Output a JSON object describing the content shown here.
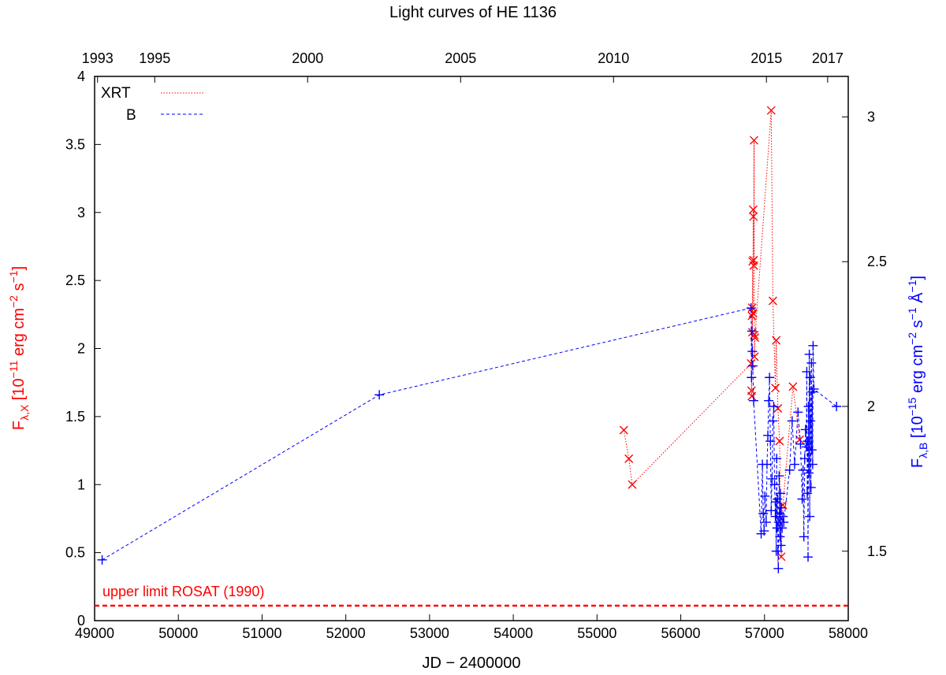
{
  "chart_data": {
    "type": "scatter",
    "title": "Light curves of HE 1136",
    "xlabel": "JD − 2400000",
    "xlim": [
      49000,
      58000
    ],
    "x_ticks": [
      49000,
      50000,
      51000,
      52000,
      53000,
      54000,
      55000,
      56000,
      57000,
      58000
    ],
    "top_axis": {
      "label_positions_jd": [
        49035,
        49718,
        51544,
        53371,
        55197,
        57023,
        57754
      ],
      "labels": [
        "1993",
        "1995",
        "2000",
        "2005",
        "2010",
        "2015",
        "2017"
      ]
    },
    "ylabel_left": "F",
    "ylabel_left_sub": "λ,X",
    "ylabel_left_unit": " [10",
    "ylabel_left_exp1": "−11",
    "ylabel_left_mid": " erg cm",
    "ylabel_left_exp2": "−2",
    "ylabel_left_mid2": " s",
    "ylabel_left_exp3": "−1",
    "ylabel_left_end": "]",
    "ylim_left": [
      0,
      4
    ],
    "y_ticks_left": [
      "0",
      "0.5",
      "1",
      "1.5",
      "2",
      "2.5",
      "3",
      "3.5",
      "4"
    ],
    "ylabel_right": "F",
    "ylabel_right_sub": "λ,B",
    "ylabel_right_unit": " [10",
    "ylabel_right_exp1": "−15",
    "ylabel_right_mid": " erg cm",
    "ylabel_right_exp2": "−2",
    "ylabel_right_mid2": " s",
    "ylabel_right_exp3": "−1",
    "ylabel_right_mid3": " Å",
    "ylabel_right_exp4": "−1",
    "ylabel_right_end": "]",
    "ylim_right": [
      1.26,
      3.14
    ],
    "y_ticks_right": [
      "1.5",
      "2",
      "2.5",
      "3"
    ],
    "legend": {
      "position": "top-left",
      "entries": [
        "XRT",
        "B"
      ]
    },
    "annotation": "upper limit ROSAT (1990)",
    "rosat_upper_limit": 0.11,
    "colors": {
      "xrt": "#ff0000",
      "b": "#0000ff",
      "rosat": "#ff0000",
      "axis": "#000000"
    },
    "series": [
      {
        "name": "XRT",
        "marker": "x",
        "line": "dotted",
        "axis": "left",
        "x": [
          55320,
          55380,
          55420,
          56840,
          56845,
          56848,
          56850,
          56852,
          56855,
          56858,
          56862,
          56865,
          56868,
          56870,
          56872,
          56875,
          56878,
          56880,
          56885,
          57080,
          57100,
          57130,
          57140,
          57160,
          57180,
          57200,
          57220,
          57340,
          57420
        ],
        "values": [
          1.4,
          1.19,
          1.0,
          1.89,
          1.69,
          1.65,
          2.24,
          2.3,
          2.12,
          2.64,
          2.26,
          3.02,
          2.97,
          2.65,
          2.61,
          3.53,
          2.1,
          1.94,
          2.08,
          3.75,
          2.35,
          1.71,
          2.06,
          1.56,
          1.32,
          0.47,
          0.85,
          1.72,
          1.33
        ]
      },
      {
        "name": "B",
        "marker": "+",
        "line": "dashed",
        "axis": "right",
        "x": [
          49090,
          52400,
          56840,
          56845,
          56850,
          56855,
          56860,
          56870,
          56960,
          56975,
          56985,
          56995,
          57005,
          57020,
          57030,
          57040,
          57050,
          57060,
          57070,
          57080,
          57090,
          57100,
          57110,
          57120,
          57130,
          57135,
          57140,
          57145,
          57150,
          57155,
          57160,
          57165,
          57170,
          57175,
          57180,
          57185,
          57190,
          57195,
          57200,
          57210,
          57220,
          57230,
          57300,
          57330,
          57360,
          57400,
          57430,
          57450,
          57460,
          57470,
          57480,
          57490,
          57500,
          57505,
          57510,
          57515,
          57520,
          57525,
          57530,
          57535,
          57540,
          57545,
          57550,
          57555,
          57560,
          57565,
          57570,
          57575,
          57580,
          57590,
          57860
        ],
        "values": [
          1.47,
          2.04,
          2.34,
          2.1,
          2.26,
          2.19,
          2.14,
          2.02,
          1.56,
          1.8,
          1.63,
          1.57,
          1.69,
          1.6,
          1.8,
          1.9,
          2.02,
          2.1,
          1.88,
          1.64,
          1.75,
          1.95,
          2.0,
          1.73,
          1.62,
          1.67,
          1.5,
          1.82,
          1.58,
          1.68,
          1.5,
          1.44,
          1.6,
          1.76,
          1.63,
          1.55,
          1.7,
          1.52,
          1.65,
          1.58,
          1.62,
          1.6,
          1.78,
          1.95,
          1.8,
          1.98,
          1.87,
          1.68,
          1.78,
          1.55,
          1.82,
          1.92,
          1.86,
          2.12,
          1.7,
          1.88,
          1.48,
          2.0,
          1.77,
          2.18,
          1.62,
          2.1,
          1.95,
          1.72,
          2.15,
          1.85,
          2.05,
          1.8,
          2.21,
          2.06,
          2.0
        ]
      }
    ]
  }
}
